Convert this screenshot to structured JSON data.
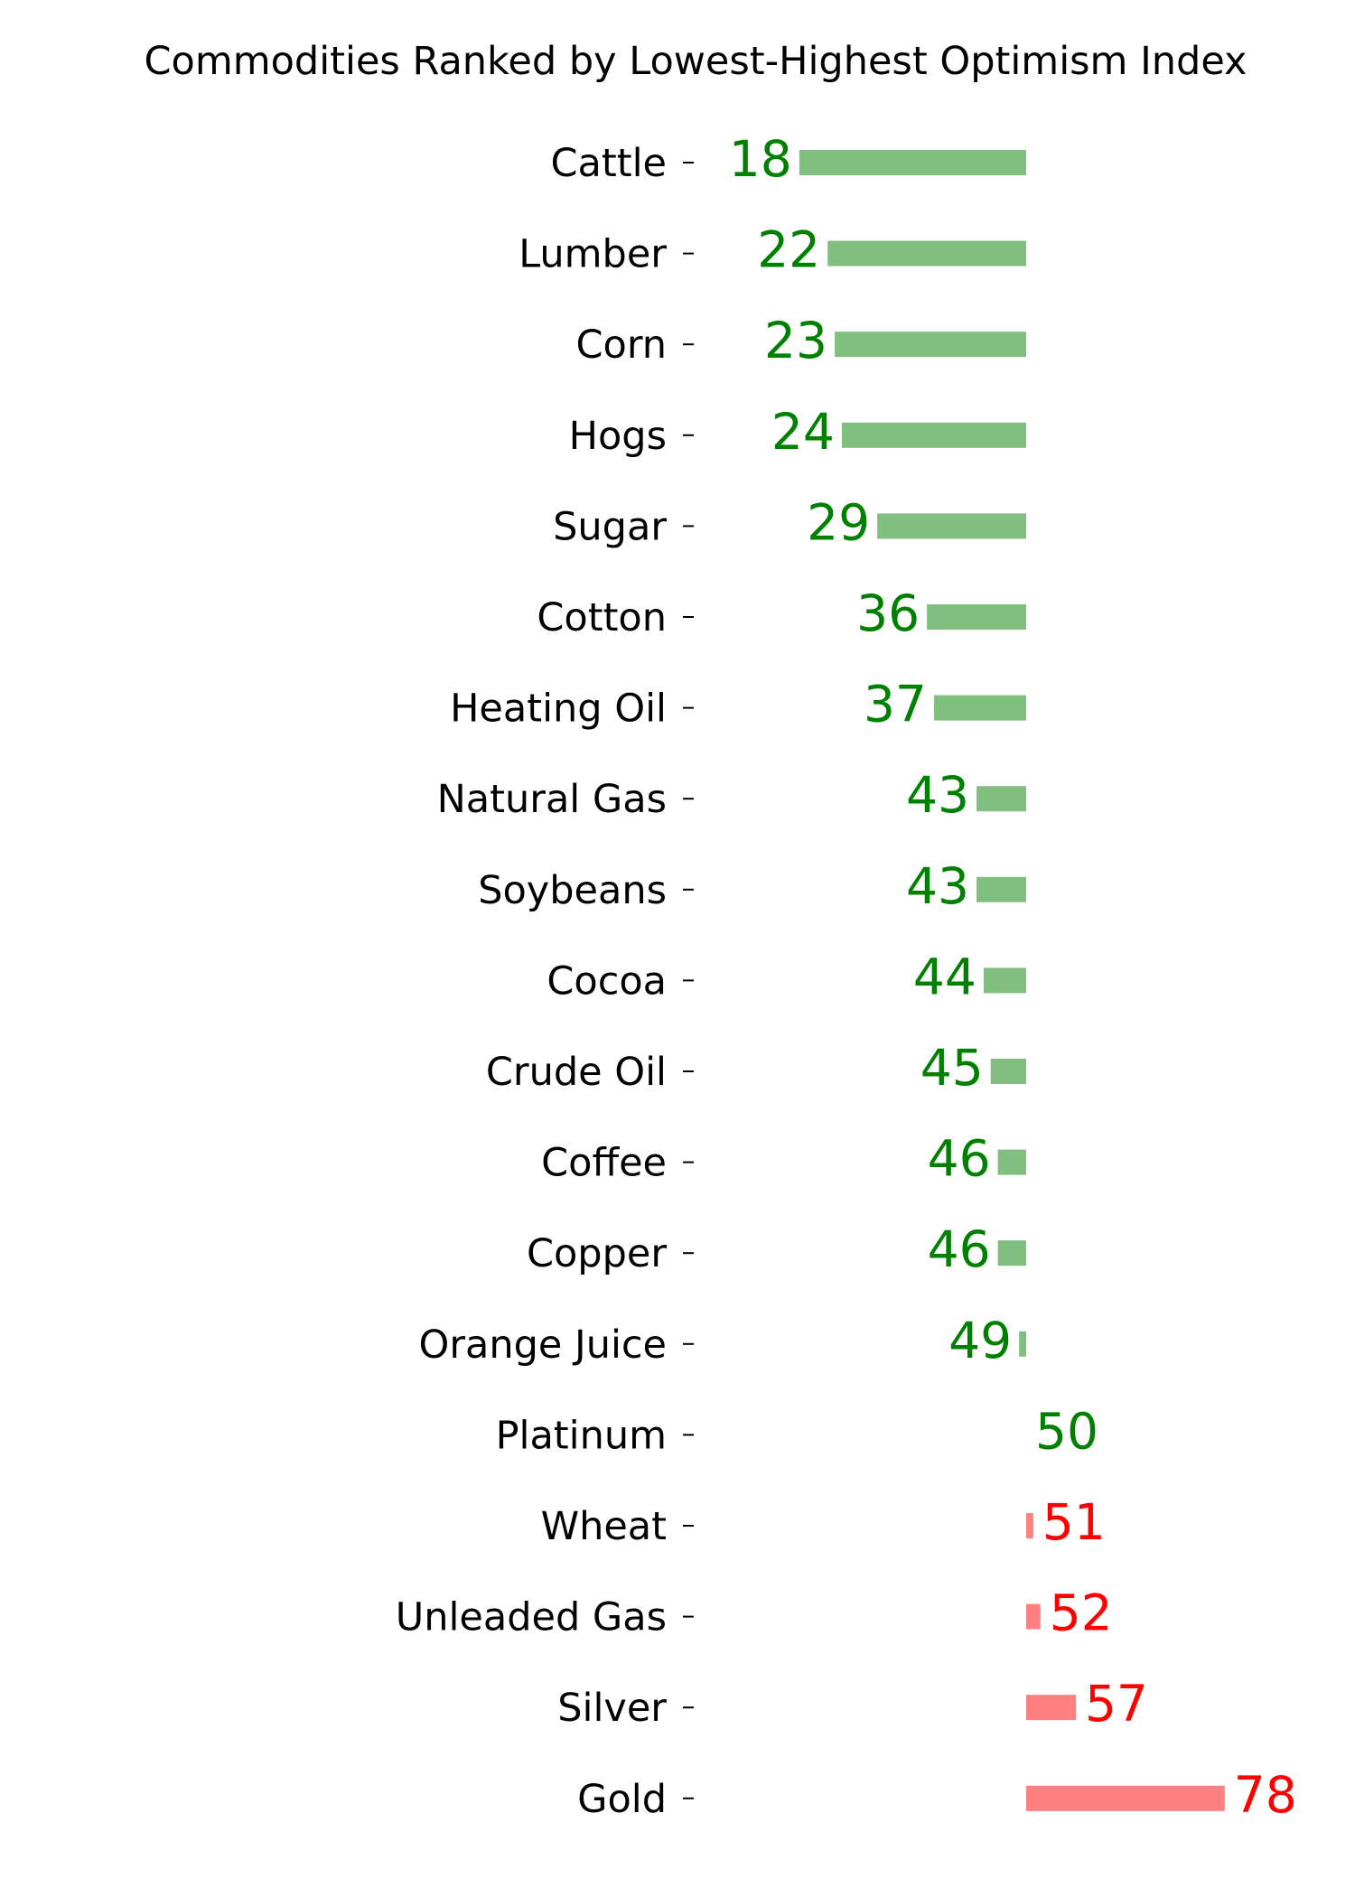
{
  "chart_data": {
    "type": "bar",
    "orientation": "horizontal",
    "title": "Commodities Ranked by Lowest-Highest Optimism Index",
    "xlabel": "",
    "ylabel": "",
    "baseline": 50,
    "categories": [
      "Cattle",
      "Lumber",
      "Corn",
      "Hogs",
      "Sugar",
      "Cotton",
      "Heating Oil",
      "Natural Gas",
      "Soybeans",
      "Cocoa",
      "Crude Oil",
      "Coffee",
      "Copper",
      "Orange Juice",
      "Platinum",
      "Wheat",
      "Unleaded Gas",
      "Silver",
      "Gold"
    ],
    "values": [
      18,
      22,
      23,
      24,
      29,
      36,
      37,
      43,
      43,
      44,
      45,
      46,
      46,
      49,
      50,
      51,
      52,
      57,
      78
    ],
    "grid": false,
    "legend": "none",
    "colors": {
      "below_bar": "#80bf80",
      "below_text": "#008000",
      "above_bar": "#ff8080",
      "above_text": "#ff0000"
    }
  }
}
